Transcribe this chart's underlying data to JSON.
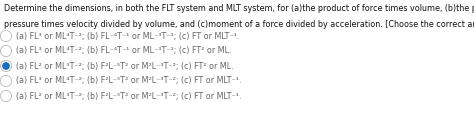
{
  "title_line1": "Determine the dimensions, in both the FLT system and MLT system, for (a)the product of force times volume, (b)the product of",
  "title_line2": "pressure times velocity divided by volume, and (c)moment of a force divided by acceleration. [Choose the correct answer.]",
  "options": [
    "(a) FL³ or ML⁴T⁻²; (b) FL⁻⁴T⁻¹ or ML⁻³T⁻¹; (c) FT or MLT⁻¹.",
    "(a) FL³ or ML⁴T⁻²; (b) FL⁻⁴T⁻¹ or ML⁻³T⁻¹; (c) FT² or ML.",
    "(a) FL² or ML³T⁻²; (b) F²L⁻⁵T² or M²L⁻³T⁻²; (c) FT² or ML.",
    "(a) FL³ or ML⁴T⁻²; (b) F²L⁻⁵T² or M²L⁻³T⁻²; (c) FT or MLT⁻¹.",
    "(a) FL² or ML³T⁻²; (b) F²L⁻⁵T² or M²L⁻³T⁻²; (c) FT or MLT⁻¹."
  ],
  "correct_index": 2,
  "radio_color_default": "#aaaaaa",
  "radio_color_selected": "#1a6fbb",
  "text_color": "#666666",
  "title_color": "#111111",
  "background_color": "#ffffff",
  "title_fontsize": 5.8,
  "option_fontsize": 5.8,
  "fig_width": 4.74,
  "fig_height": 1.25,
  "dpi": 100
}
